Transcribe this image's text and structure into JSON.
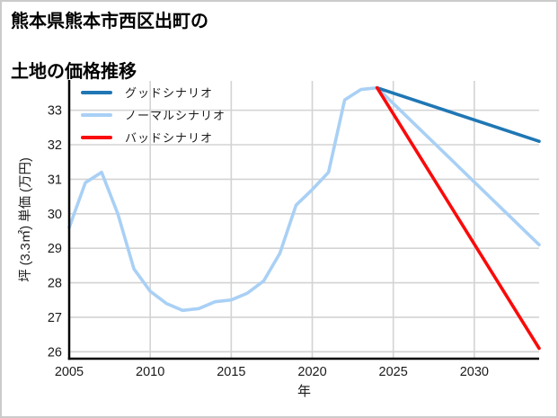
{
  "title": {
    "line1": "熊本県熊本市西区出町の",
    "line2": "土地の価格推移"
  },
  "legend": {
    "items": [
      {
        "label": "グッドシナリオ",
        "color": "#1f77b4"
      },
      {
        "label": "ノーマルシナリオ",
        "color": "#a9d0f5"
      },
      {
        "label": "バッドシナリオ",
        "color": "#fa0a0a"
      }
    ]
  },
  "chart_data": {
    "type": "line",
    "title": "熊本県熊本市西区出町の土地の価格推移",
    "xlabel": "年",
    "ylabel": "坪 (3.3㎡) 単価 (万円)",
    "xlim": [
      2005,
      2034
    ],
    "ylim": [
      25.8,
      33.85
    ],
    "x_ticks": [
      2005,
      2010,
      2015,
      2020,
      2025,
      2030
    ],
    "y_ticks": [
      26,
      27,
      28,
      29,
      30,
      31,
      32,
      33
    ],
    "grid": true,
    "legend_position": "upper-left",
    "colors": {
      "grid": "#d3d3d3",
      "spine": "#000000",
      "tick_text": "#1a1a1a"
    },
    "series": [
      {
        "name": "ノーマルシナリオ",
        "role": "history-plus-normal-forecast",
        "color": "#a9d0f5",
        "x": [
          2005,
          2006,
          2007,
          2008,
          2009,
          2010,
          2011,
          2012,
          2013,
          2014,
          2015,
          2016,
          2017,
          2018,
          2019,
          2020,
          2021,
          2022,
          2023,
          2024,
          2034
        ],
        "y": [
          29.6,
          30.9,
          31.2,
          30.0,
          28.4,
          27.75,
          27.4,
          27.2,
          27.25,
          27.45,
          27.5,
          27.7,
          28.05,
          28.85,
          30.25,
          30.7,
          31.2,
          33.3,
          33.6,
          33.65,
          29.1
        ]
      },
      {
        "name": "グッドシナリオ",
        "role": "good-forecast",
        "color": "#1f77b4",
        "x": [
          2024,
          2034
        ],
        "y": [
          33.65,
          32.1
        ]
      },
      {
        "name": "バッドシナリオ",
        "role": "bad-forecast",
        "color": "#fa0a0a",
        "x": [
          2024,
          2034
        ],
        "y": [
          33.65,
          26.1
        ]
      }
    ]
  }
}
